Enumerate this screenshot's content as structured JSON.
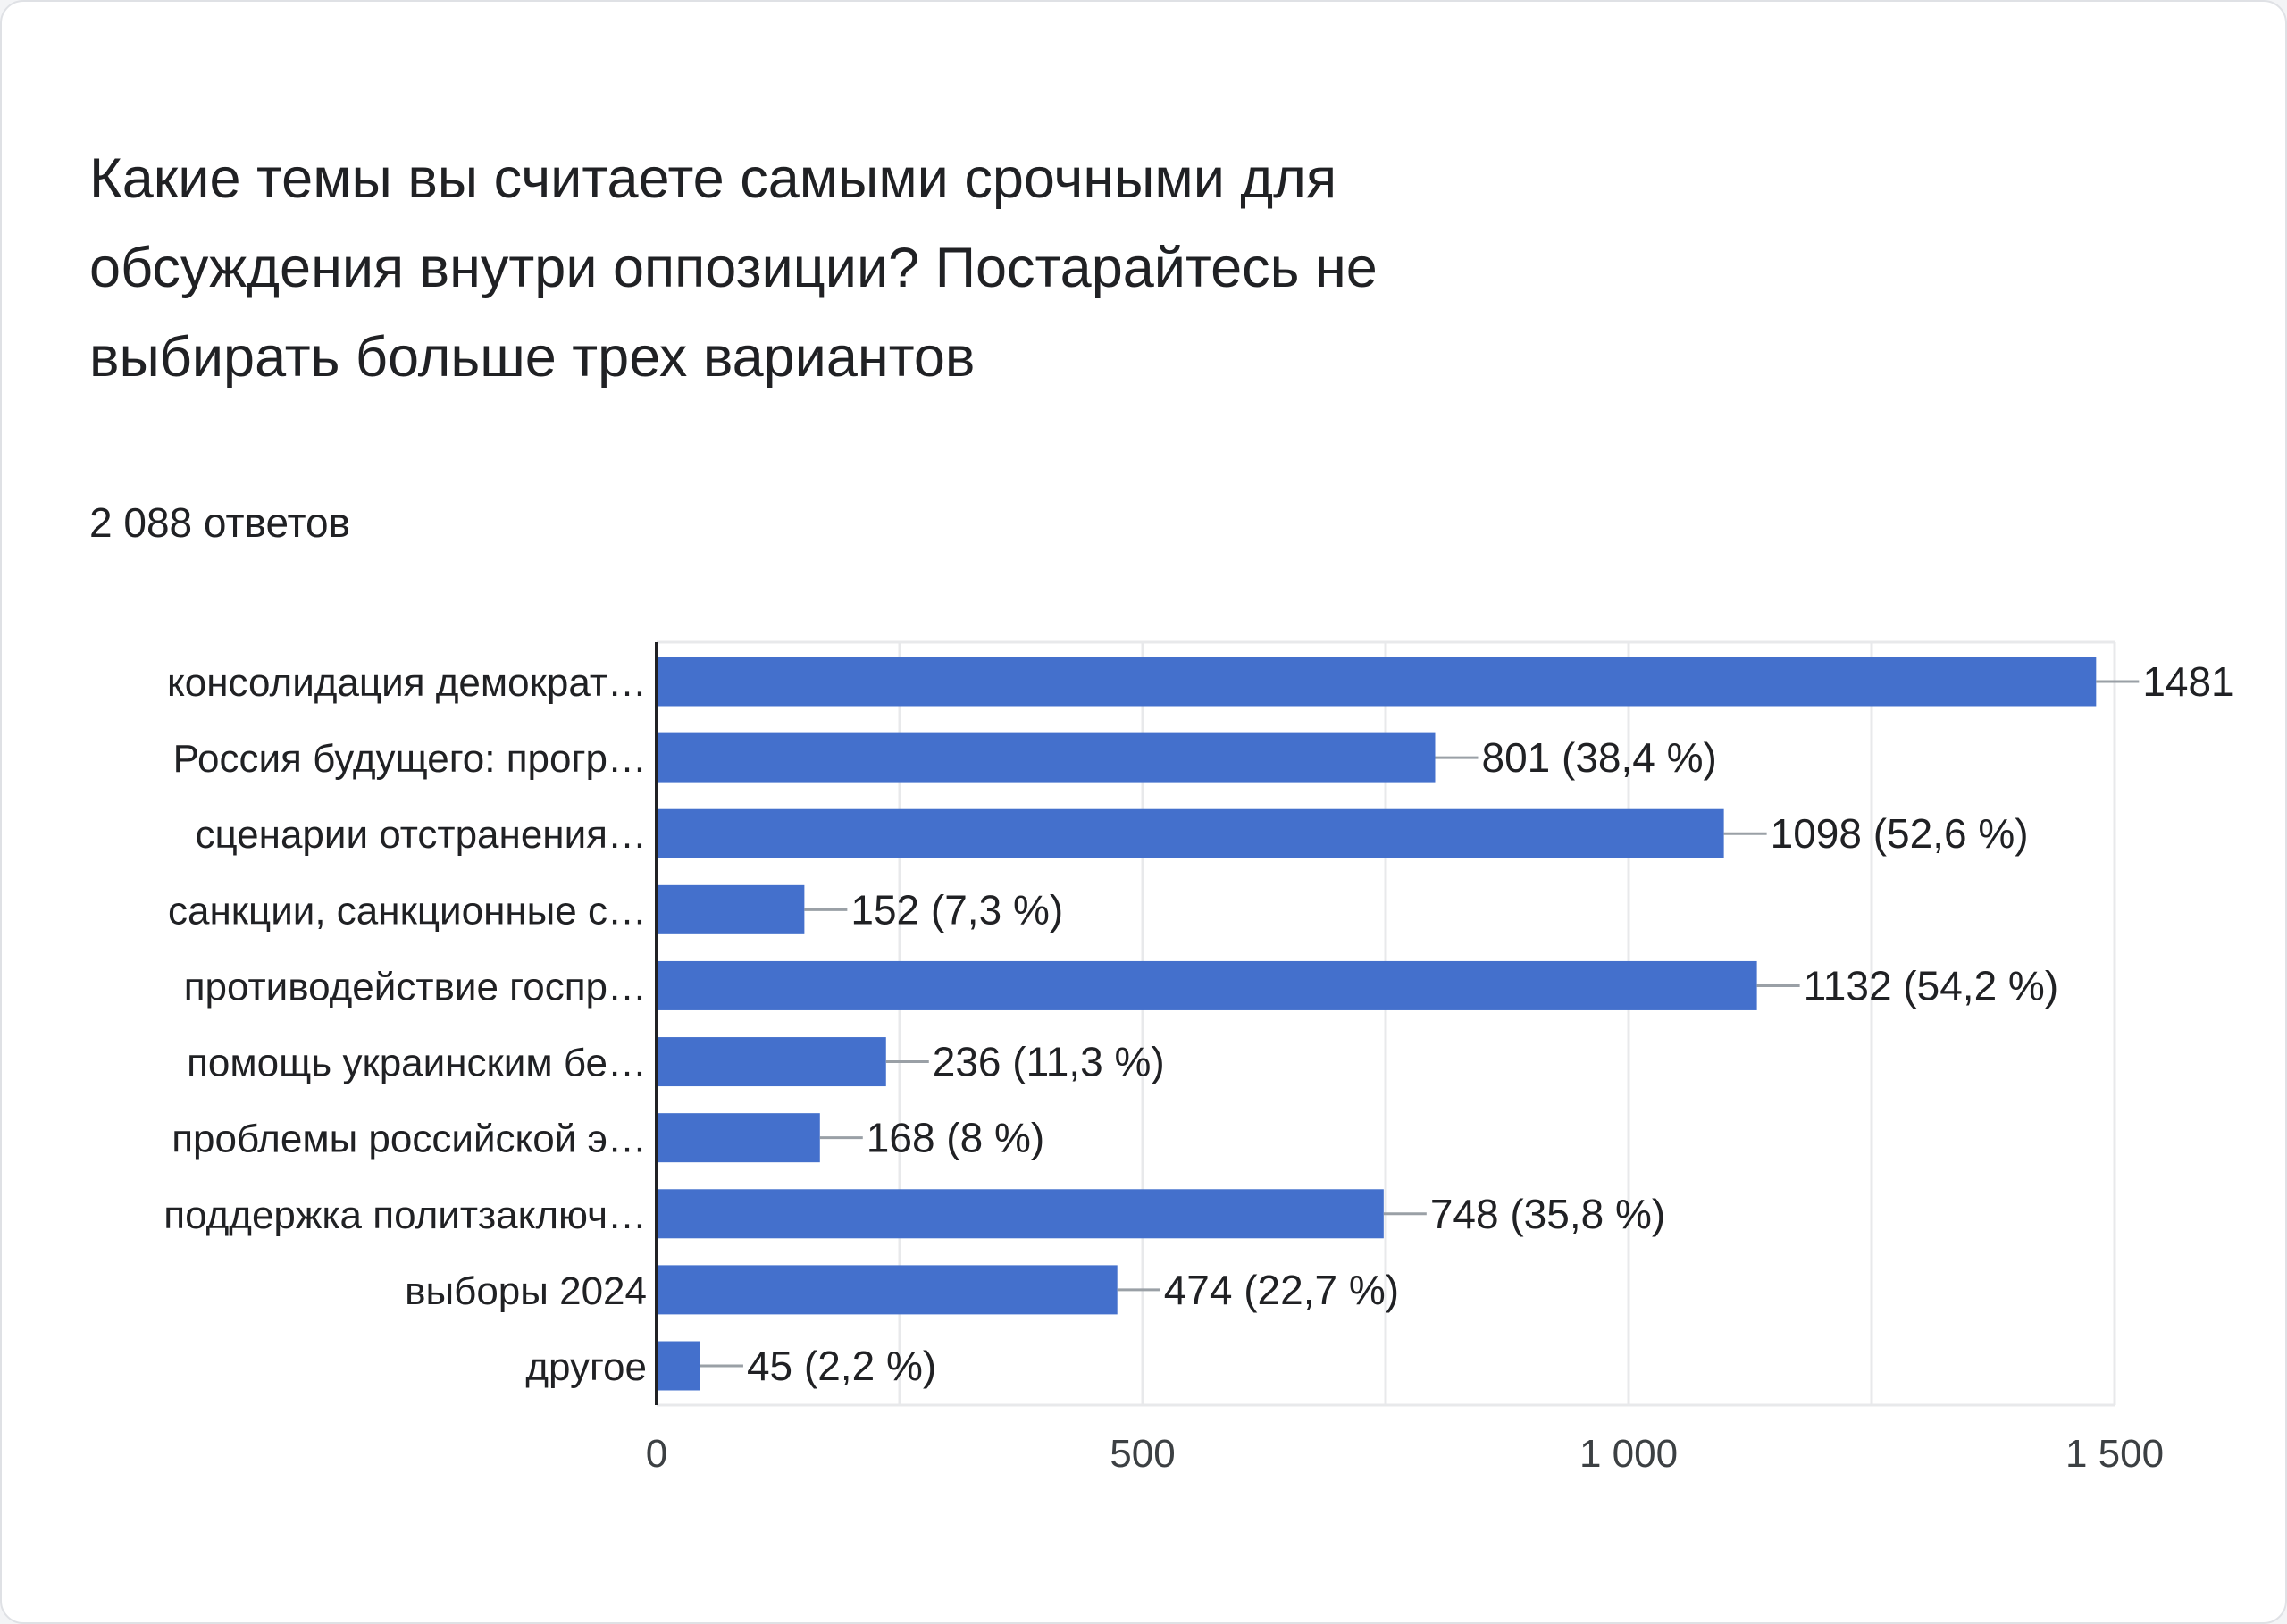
{
  "question": {
    "title": "Какие темы вы считаете самыми срочными для обсуждения внутри оппозиции? Постарайтесь не выбирать больше трех вариантов",
    "response_count": "2 088 ответов"
  },
  "colors": {
    "bar": "#4470cc",
    "gridline": "#e8e9eb",
    "axis": "#202124",
    "connector": "#9aa0a6",
    "text": "#202124",
    "tick_text": "#3c4043"
  },
  "chart_data": {
    "type": "bar",
    "orientation": "horizontal",
    "title": "",
    "xlabel": "",
    "ylabel": "",
    "xlim": [
      0,
      1500
    ],
    "xticks": [
      0,
      500,
      1000,
      1500
    ],
    "xtick_labels": [
      "0",
      "500",
      "1 000",
      "1 500"
    ],
    "grid": true,
    "categories": [
      "консолидация демократ…",
      "Россия будущего: прогр…",
      "сценарии отстранения…",
      "санкции, санкционные с…",
      "противодействие госпр…",
      "помощь украинским бе…",
      "проблемы российской э…",
      "поддержка политзаключ…",
      "выборы 2024",
      "другое"
    ],
    "values": [
      1481,
      801,
      1098,
      152,
      1132,
      236,
      168,
      748,
      474,
      45
    ],
    "value_labels": [
      "1481",
      "801 (38,4 %)",
      "1098 (52,6 %)",
      "152 (7,3 %)",
      "1132 (54,2 %)",
      "236 (11,3 %)",
      "168 (8 %)",
      "748 (35,8 %)",
      "474 (22,7 %)",
      "45 (2,2 %)"
    ]
  }
}
